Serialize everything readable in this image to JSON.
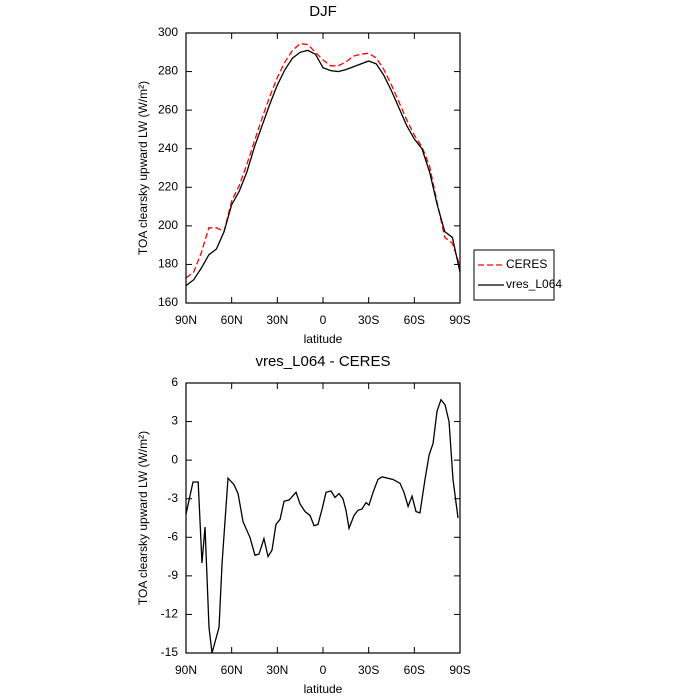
{
  "chart_data": [
    {
      "type": "line",
      "title": "DJF",
      "x_label": "latitude",
      "y_label": "TOA clearsky upward LW (W/m²)",
      "x": [
        90,
        85,
        80,
        75,
        70,
        65,
        60,
        55,
        50,
        45,
        40,
        35,
        30,
        25,
        20,
        15,
        10,
        5,
        0,
        -5,
        -10,
        -15,
        -20,
        -25,
        -30,
        -35,
        -40,
        -45,
        -50,
        -55,
        -60,
        -65,
        -70,
        -75,
        -80,
        -85,
        -90
      ],
      "series": [
        {
          "name": "CERES",
          "color": "#ff0000",
          "linestyle": "dashed",
          "values": [
            173,
            176,
            186,
            199,
            199,
            197,
            213,
            221,
            232,
            244,
            256,
            267,
            277,
            285,
            291,
            294.5,
            294,
            290,
            286,
            283,
            283,
            285,
            288,
            289,
            289.5,
            287,
            281,
            273,
            264,
            255,
            247,
            241,
            231,
            212,
            194,
            191,
            179
          ]
        },
        {
          "name": "vres_L064",
          "color": "#000000",
          "linestyle": "solid",
          "values": [
            169,
            172,
            178,
            185,
            188,
            197,
            211,
            218,
            228,
            241,
            252,
            263,
            273,
            281,
            287,
            290,
            291,
            289,
            282,
            280.5,
            280,
            281,
            282.5,
            284,
            285.5,
            284,
            278,
            270,
            261,
            252,
            245,
            240,
            228,
            211,
            197,
            194,
            176
          ]
        }
      ],
      "xlim": [
        90,
        -90
      ],
      "xticks": [
        {
          "value": 90,
          "label": "90N"
        },
        {
          "value": 60,
          "label": "60N"
        },
        {
          "value": 30,
          "label": "30N"
        },
        0,
        {
          "value": -30,
          "label": "30S"
        },
        {
          "value": -60,
          "label": "60S"
        },
        {
          "value": -90,
          "label": "90S"
        }
      ],
      "ylim": [
        160,
        300
      ],
      "yticks": [
        160,
        180,
        200,
        220,
        240,
        260,
        280,
        300
      ],
      "grid": false,
      "legend": "right"
    },
    {
      "type": "line",
      "title": "vres_L064 - CERES",
      "x_label": "latitude",
      "y_label": "TOA clearsky upward LW (W/m²)",
      "x": [
        90,
        85.4,
        82,
        79.5,
        77.5,
        74.9,
        72.9,
        68.3,
        66.3,
        62.4,
        58.5,
        55.8,
        52.5,
        48,
        44.7,
        42,
        38.8,
        36.1,
        33.5,
        30.9,
        28.2,
        25.6,
        22.3,
        17.7,
        15.1,
        11.8,
        8.5,
        5.9,
        3.3,
        0.6,
        -2,
        -5.3,
        -7.9,
        -10.5,
        -13.1,
        -15.1,
        -17.1,
        -20.4,
        -23,
        -25.6,
        -28.3,
        -30.2,
        -32.9,
        -36.1,
        -38.8,
        -46,
        -50.6,
        -53.2,
        -55.9,
        -58.5,
        -61.1,
        -63.7,
        -67,
        -69.7,
        -72.3,
        -74.9,
        -77.5,
        -80.2,
        -82.8,
        -85.4,
        -88.7
      ],
      "series": [
        {
          "name": "vres_L064 - CERES",
          "color": "#000000",
          "linestyle": "solid",
          "values": [
            -4.2,
            -1.7,
            -1.7,
            -8,
            -5.2,
            -13,
            -15,
            -13,
            -8,
            -1.4,
            -1.9,
            -2.6,
            -4.8,
            -6,
            -7.4,
            -7.3,
            -6.1,
            -7.5,
            -7,
            -5,
            -4.6,
            -3.2,
            -3.1,
            -2.5,
            -3.4,
            -4,
            -4.3,
            -5.1,
            -5,
            -3.8,
            -2.5,
            -2.4,
            -2.9,
            -2.6,
            -3,
            -3.9,
            -5.3,
            -4.3,
            -3.9,
            -3.8,
            -3.3,
            -3.5,
            -2.5,
            -1.5,
            -1.3,
            -1.5,
            -1.8,
            -2.5,
            -3.6,
            -2.8,
            -4,
            -4.1,
            -1.5,
            0.4,
            1.3,
            3.8,
            4.7,
            4.3,
            3,
            -1.5,
            -4.5
          ]
        }
      ],
      "xlim": [
        90,
        -90
      ],
      "xticks": [
        {
          "value": 90,
          "label": "90N"
        },
        {
          "value": 60,
          "label": "60N"
        },
        {
          "value": 30,
          "label": "30N"
        },
        0,
        {
          "value": -30,
          "label": "30S"
        },
        {
          "value": -60,
          "label": "60S"
        },
        {
          "value": -90,
          "label": "90S"
        }
      ],
      "ylim": [
        -15,
        6
      ],
      "yticks": [
        -15,
        -12,
        -9,
        -6,
        -3,
        0,
        3,
        6
      ],
      "grid": false
    }
  ]
}
